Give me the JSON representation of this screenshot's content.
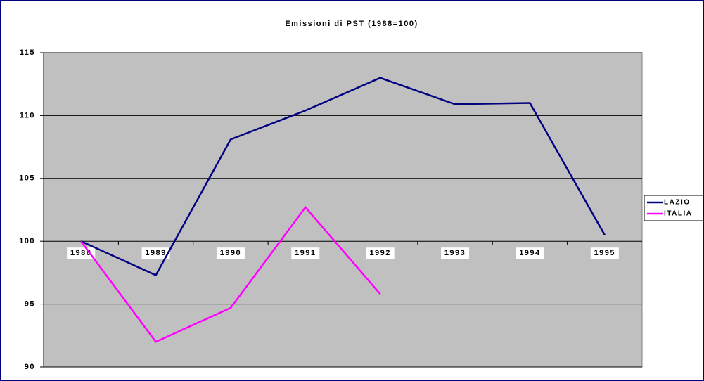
{
  "chart_data": {
    "type": "line",
    "title": "Emissioni di PST (1988=100)",
    "categories": [
      "1988",
      "1989",
      "1990",
      "1991",
      "1992",
      "1993",
      "1994",
      "1995"
    ],
    "series": [
      {
        "name": "LAZIO",
        "color": "#000080",
        "values": [
          100,
          97.3,
          108.1,
          110.4,
          113,
          110.9,
          111,
          100.5
        ]
      },
      {
        "name": "ITALIA",
        "color": "#ff00ff",
        "values": [
          100,
          92,
          94.7,
          102.7,
          95.8,
          null,
          null,
          null
        ]
      }
    ],
    "ylim": [
      90,
      115
    ],
    "yticks": [
      90,
      95,
      100,
      105,
      110,
      115
    ],
    "grid": true,
    "legend": "right"
  }
}
